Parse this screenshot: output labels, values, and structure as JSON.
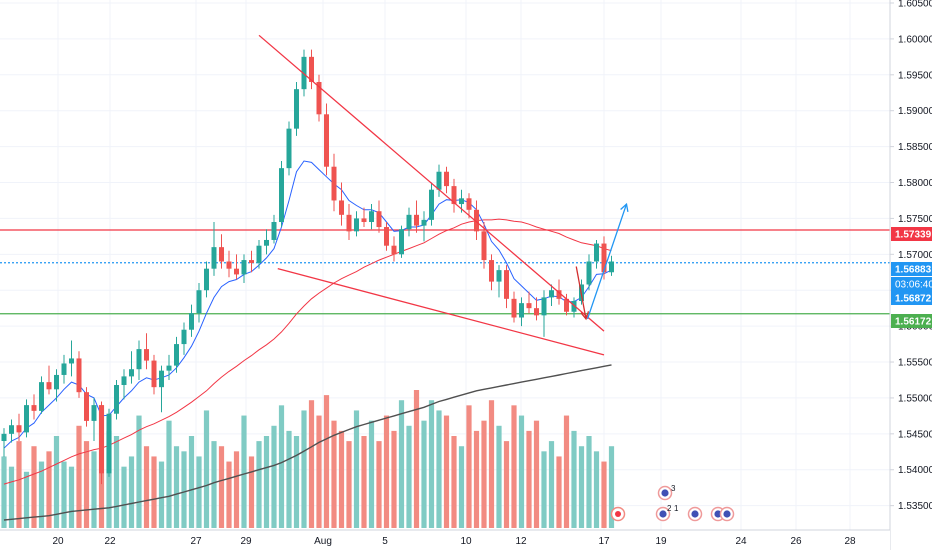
{
  "chart_data": {
    "type": "candlestick",
    "y_axis": {
      "ticks": [
        "1.60500",
        "1.60000",
        "1.59500",
        "1.59000",
        "1.58500",
        "1.58000",
        "1.57500",
        "1.57000",
        "1.56500",
        "1.56000",
        "1.55500",
        "1.55000",
        "1.54500",
        "1.54000",
        "1.53500"
      ],
      "ylim": [
        1.533,
        1.605
      ]
    },
    "x_axis": {
      "ticks": [
        "20",
        "22",
        "27",
        "29",
        "Aug",
        "5",
        "10",
        "12",
        "17",
        "19",
        "24",
        "26",
        "28"
      ]
    },
    "price_labels": [
      {
        "value": "1.57339",
        "color": "#f23645"
      },
      {
        "value": "1.56883",
        "color": "#2196f3"
      },
      {
        "value": "03:06:40",
        "color": "#2196f3"
      },
      {
        "value": "1.56872",
        "color": "#2196f3"
      },
      {
        "value": "1.56172",
        "color": "#4caf50"
      }
    ],
    "horizontal_levels": [
      {
        "price": 1.57339,
        "color": "#f23645",
        "style": "solid"
      },
      {
        "price": 1.56883,
        "color": "#2196f3",
        "style": "dotted"
      },
      {
        "price": 1.56172,
        "color": "#4caf50",
        "style": "solid"
      }
    ],
    "candles": [
      [
        1.544,
        1.5458,
        1.5418,
        1.545
      ],
      [
        1.545,
        1.547,
        1.5438,
        1.5462
      ],
      [
        1.5462,
        1.5478,
        1.544,
        1.5452
      ],
      [
        1.5452,
        1.5498,
        1.5445,
        1.549
      ],
      [
        1.549,
        1.5505,
        1.547,
        1.5482
      ],
      [
        1.5482,
        1.553,
        1.5478,
        1.5522
      ],
      [
        1.5522,
        1.5545,
        1.5505,
        1.5512
      ],
      [
        1.5512,
        1.554,
        1.5495,
        1.5532
      ],
      [
        1.5532,
        1.556,
        1.552,
        1.5548
      ],
      [
        1.5548,
        1.558,
        1.553,
        1.5555
      ],
      [
        1.5555,
        1.5565,
        1.55,
        1.5508
      ],
      [
        1.5508,
        1.5515,
        1.546,
        1.5468
      ],
      [
        1.5468,
        1.55,
        1.544,
        1.549
      ],
      [
        1.549,
        1.5495,
        1.538,
        1.5395
      ],
      [
        1.5395,
        1.5485,
        1.539,
        1.5478
      ],
      [
        1.5478,
        1.5525,
        1.547,
        1.5518
      ],
      [
        1.5518,
        1.554,
        1.5498,
        1.553
      ],
      [
        1.553,
        1.5565,
        1.552,
        1.554
      ],
      [
        1.554,
        1.558,
        1.5525,
        1.5568
      ],
      [
        1.5568,
        1.559,
        1.554,
        1.5552
      ],
      [
        1.5552,
        1.556,
        1.5505,
        1.5515
      ],
      [
        1.5515,
        1.5545,
        1.548,
        1.5538
      ],
      [
        1.5538,
        1.556,
        1.5525,
        1.5545
      ],
      [
        1.5545,
        1.5585,
        1.5535,
        1.5575
      ],
      [
        1.5575,
        1.5605,
        1.556,
        1.5595
      ],
      [
        1.5595,
        1.563,
        1.5585,
        1.5618
      ],
      [
        1.5618,
        1.566,
        1.5605,
        1.565
      ],
      [
        1.565,
        1.569,
        1.564,
        1.568
      ],
      [
        1.568,
        1.5745,
        1.567,
        1.571
      ],
      [
        1.571,
        1.5728,
        1.568,
        1.569
      ],
      [
        1.569,
        1.5705,
        1.5668,
        1.568
      ],
      [
        1.568,
        1.57,
        1.5665,
        1.5672
      ],
      [
        1.5672,
        1.57,
        1.566,
        1.5692
      ],
      [
        1.5692,
        1.5705,
        1.5675,
        1.5688
      ],
      [
        1.5688,
        1.572,
        1.568,
        1.5712
      ],
      [
        1.5712,
        1.5735,
        1.57,
        1.572
      ],
      [
        1.572,
        1.5755,
        1.5715,
        1.5745
      ],
      [
        1.5745,
        1.583,
        1.5738,
        1.582
      ],
      [
        1.582,
        1.5885,
        1.581,
        1.5875
      ],
      [
        1.5875,
        1.594,
        1.5865,
        1.593
      ],
      [
        1.593,
        1.5985,
        1.592,
        1.5975
      ],
      [
        1.5975,
        1.5985,
        1.593,
        1.594
      ],
      [
        1.594,
        1.595,
        1.5885,
        1.5895
      ],
      [
        1.5895,
        1.591,
        1.581,
        1.5822
      ],
      [
        1.5822,
        1.584,
        1.576,
        1.5775
      ],
      [
        1.5775,
        1.58,
        1.574,
        1.5755
      ],
      [
        1.5755,
        1.577,
        1.572,
        1.5732
      ],
      [
        1.5732,
        1.576,
        1.5725,
        1.575
      ],
      [
        1.575,
        1.5765,
        1.5738,
        1.5745
      ],
      [
        1.5745,
        1.577,
        1.5735,
        1.576
      ],
      [
        1.576,
        1.5775,
        1.573,
        1.5738
      ],
      [
        1.5738,
        1.5745,
        1.5705,
        1.5712
      ],
      [
        1.5712,
        1.5725,
        1.569,
        1.57
      ],
      [
        1.57,
        1.574,
        1.5695,
        1.5735
      ],
      [
        1.5735,
        1.5765,
        1.5725,
        1.5755
      ],
      [
        1.5755,
        1.5775,
        1.573,
        1.574
      ],
      [
        1.574,
        1.576,
        1.5718,
        1.5748
      ],
      [
        1.5748,
        1.58,
        1.574,
        1.579
      ],
      [
        1.579,
        1.5825,
        1.578,
        1.5815
      ],
      [
        1.5815,
        1.5822,
        1.5785,
        1.5795
      ],
      [
        1.5795,
        1.5805,
        1.5758,
        1.577
      ],
      [
        1.577,
        1.579,
        1.5758,
        1.5778
      ],
      [
        1.5778,
        1.5785,
        1.575,
        1.5762
      ],
      [
        1.5762,
        1.5775,
        1.572,
        1.5732
      ],
      [
        1.5732,
        1.5745,
        1.568,
        1.5692
      ],
      [
        1.5692,
        1.57,
        1.565,
        1.5662
      ],
      [
        1.5662,
        1.5685,
        1.564,
        1.5678
      ],
      [
        1.5678,
        1.5685,
        1.5625,
        1.5638
      ],
      [
        1.5638,
        1.5648,
        1.5605,
        1.5612
      ],
      [
        1.5612,
        1.564,
        1.56,
        1.5632
      ],
      [
        1.5632,
        1.5648,
        1.5618,
        1.5625
      ],
      [
        1.5625,
        1.564,
        1.5608,
        1.5615
      ],
      [
        1.5615,
        1.565,
        1.5585,
        1.564
      ],
      [
        1.564,
        1.5658,
        1.5628,
        1.565
      ],
      [
        1.565,
        1.5665,
        1.563,
        1.5638
      ],
      [
        1.5638,
        1.5645,
        1.5615,
        1.562
      ],
      [
        1.562,
        1.564,
        1.5612,
        1.5635
      ],
      [
        1.5635,
        1.5665,
        1.563,
        1.5658
      ],
      [
        1.5658,
        1.57,
        1.565,
        1.569
      ],
      [
        1.569,
        1.572,
        1.568,
        1.5715
      ],
      [
        1.5715,
        1.5725,
        1.5665,
        1.5675
      ],
      [
        1.5675,
        1.5698,
        1.567,
        1.569
      ]
    ],
    "ema_fast": [
      1.543,
      1.544,
      1.5445,
      1.5458,
      1.5465,
      1.548,
      1.549,
      1.55,
      1.5512,
      1.5522,
      1.5518,
      1.5505,
      1.55,
      1.5475,
      1.5476,
      1.5488,
      1.55,
      1.551,
      1.5522,
      1.5528,
      1.5525,
      1.5528,
      1.5532,
      1.5542,
      1.5556,
      1.5572,
      1.5593,
      1.5618,
      1.564,
      1.5655,
      1.5662,
      1.5665,
      1.5672,
      1.5676,
      1.5685,
      1.5695,
      1.5708,
      1.5738,
      1.5775,
      1.5815,
      1.583,
      1.5828,
      1.5818,
      1.5808,
      1.5798,
      1.579,
      1.5775,
      1.5768,
      1.5762,
      1.5762,
      1.5758,
      1.5745,
      1.5732,
      1.5733,
      1.5738,
      1.5738,
      1.5741,
      1.5755,
      1.577,
      1.5776,
      1.5775,
      1.5776,
      1.5772,
      1.5762,
      1.5742,
      1.5718,
      1.5706,
      1.5688,
      1.5666,
      1.5656,
      1.5646,
      1.5636,
      1.5638,
      1.5642,
      1.5641,
      1.5634,
      1.5634,
      1.564,
      1.5655,
      1.5672,
      1.5673,
      1.5678
    ],
    "ma_slow": [
      1.538,
      1.5383,
      1.5386,
      1.539,
      1.5394,
      1.5398,
      1.5403,
      1.5408,
      1.5413,
      1.5418,
      1.5422,
      1.5425,
      1.5428,
      1.543,
      1.5434,
      1.5439,
      1.5444,
      1.5449,
      1.5455,
      1.546,
      1.5464,
      1.5469,
      1.5474,
      1.548,
      1.5487,
      1.5494,
      1.5502,
      1.551,
      1.552,
      1.5529,
      1.5537,
      1.5544,
      1.5552,
      1.5559,
      1.5567,
      1.5574,
      1.5582,
      1.5592,
      1.5604,
      1.5617,
      1.5628,
      1.5638,
      1.5646,
      1.5653,
      1.566,
      1.5666,
      1.5671,
      1.5676,
      1.5682,
      1.5687,
      1.5692,
      1.5696,
      1.57,
      1.5704,
      1.5708,
      1.5712,
      1.5716,
      1.5722,
      1.5728,
      1.5733,
      1.5737,
      1.5742,
      1.5745,
      1.5747,
      1.5748,
      1.5748,
      1.5749,
      1.5748,
      1.5746,
      1.5745,
      1.5742,
      1.5738,
      1.5735,
      1.5732,
      1.5729,
      1.5724,
      1.572,
      1.5716,
      1.5714,
      1.5712,
      1.5708,
      1.5705
    ],
    "ma_long": [
      1.533,
      1.5331,
      1.5332,
      1.5333,
      1.5334,
      1.5335,
      1.5336,
      1.5338,
      1.534,
      1.5342,
      1.5343,
      1.5344,
      1.5345,
      1.5346,
      1.5347,
      1.5349,
      1.5351,
      1.5353,
      1.5355,
      1.5357,
      1.5359,
      1.5361,
      1.5363,
      1.5366,
      1.5369,
      1.5372,
      1.5375,
      1.5378,
      1.5382,
      1.5385,
      1.5388,
      1.5391,
      1.5394,
      1.5397,
      1.54,
      1.5403,
      1.5406,
      1.541,
      1.5415,
      1.542,
      1.5426,
      1.5432,
      1.5438,
      1.5443,
      1.5448,
      1.5452,
      1.5456,
      1.546,
      1.5463,
      1.5466,
      1.5469,
      1.5472,
      1.5475,
      1.5478,
      1.5481,
      1.5484,
      1.5487,
      1.5491,
      1.5495,
      1.5498,
      1.5501,
      1.5504,
      1.5507,
      1.551,
      1.5512,
      1.5514,
      1.5516,
      1.5518,
      1.552,
      1.5522,
      1.5524,
      1.5526,
      1.5528,
      1.553,
      1.5532,
      1.5534,
      1.5536,
      1.5538,
      1.554,
      1.5542,
      1.5544,
      1.5546
    ],
    "volume": [
      14,
      12,
      17,
      11,
      16,
      13,
      15,
      18,
      13,
      12,
      20,
      17,
      15,
      24,
      19,
      18,
      12,
      14,
      22,
      16,
      14,
      13,
      21,
      16,
      15,
      18,
      14,
      23,
      17,
      16,
      13,
      15,
      22,
      14,
      17,
      18,
      20,
      24,
      19,
      18,
      23,
      25,
      22,
      26,
      21,
      19,
      17,
      23,
      18,
      21,
      17,
      22,
      19,
      25,
      20,
      27,
      21,
      25,
      23,
      22,
      18,
      16,
      24,
      19,
      21,
      25,
      20,
      17,
      24,
      22,
      19,
      21,
      15,
      17,
      14,
      22,
      19,
      16,
      18,
      15,
      13,
      16
    ],
    "trendlines": [
      {
        "name": "upper-wedge-line",
        "color": "#f23645",
        "from": [
          34.0,
          1.6005
        ],
        "to": [
          80.0,
          1.5593
        ]
      },
      {
        "name": "lower-wedge-line",
        "color": "#f23645",
        "from": [
          36.5,
          1.568
        ],
        "to": [
          80.0,
          1.556
        ]
      },
      {
        "name": "projection-down",
        "color": "#d32f2f",
        "from": [
          76.3,
          1.5683
        ],
        "to": [
          77.6,
          1.561
        ]
      },
      {
        "name": "projection-up",
        "color": "#2196f3",
        "from": [
          77.8,
          1.561
        ],
        "to": [
          83.0,
          1.577
        ]
      }
    ],
    "events": [
      {
        "x_day": "19",
        "number": "3"
      },
      {
        "x_day": "19",
        "number": "2"
      },
      {
        "x_day": "19",
        "number": "1"
      }
    ],
    "colors": {
      "up": "#26a69a",
      "down": "#ef5350",
      "vol_up": "#80cbc4",
      "vol_down": "#f28b82",
      "ema_fast": "#2962ff",
      "ma_slow": "#f23645",
      "ma_long": "#505050",
      "grid": "#f0f3fa",
      "axis": "#d1d4dc"
    }
  }
}
